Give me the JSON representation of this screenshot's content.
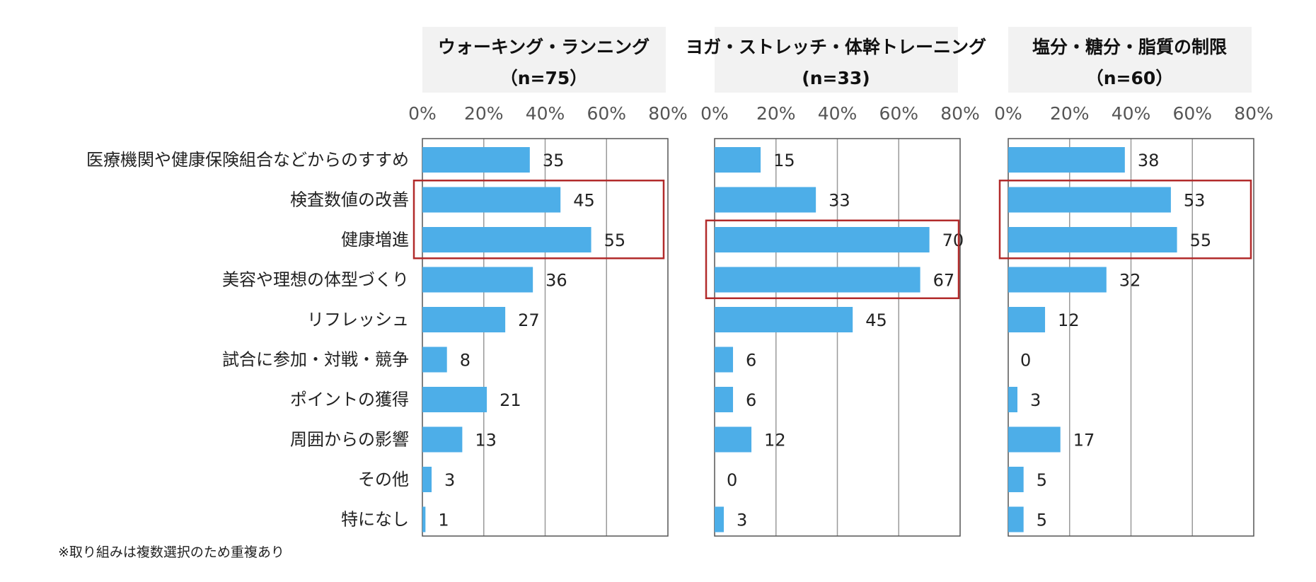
{
  "chart_data": {
    "type": "bar",
    "orientation": "horizontal",
    "categories": [
      "医療機関や健康保険組合などからのすすめ",
      "検査数値の改善",
      "健康増進",
      "美容や理想の体型づくり",
      "リフレッシュ",
      "試合に参加・対戦・競争",
      "ポイントの獲得",
      "周囲からの影響",
      "その他",
      "特になし"
    ],
    "xlim": [
      0,
      80
    ],
    "ticks": [
      "0%",
      "20%",
      "40%",
      "60%",
      "80%"
    ],
    "tick_values": [
      0,
      20,
      40,
      60,
      80
    ],
    "grid": true,
    "panels": [
      {
        "title": "ウォーキング・ランニング",
        "n_label": "（n=75）",
        "values": [
          35,
          45,
          55,
          36,
          27,
          8,
          21,
          13,
          3,
          1
        ],
        "highlight": [
          1,
          2
        ]
      },
      {
        "title": "ヨガ・ストレッチ・体幹トレーニング",
        "n_label": "(n=33)",
        "values": [
          15,
          33,
          70,
          67,
          45,
          6,
          6,
          12,
          0,
          3
        ],
        "highlight": [
          2,
          3
        ]
      },
      {
        "title": "塩分・糖分・脂質の制限",
        "n_label": "（n=60）",
        "values": [
          38,
          53,
          55,
          32,
          12,
          0,
          3,
          17,
          5,
          5
        ],
        "highlight": [
          1,
          2
        ]
      }
    ],
    "footnote": "※取り組みは複数選択のため重複あり",
    "colors": {
      "bar": "#4daee8",
      "highlight": "#b22b2b",
      "header_bg": "#f2f2f2"
    }
  }
}
